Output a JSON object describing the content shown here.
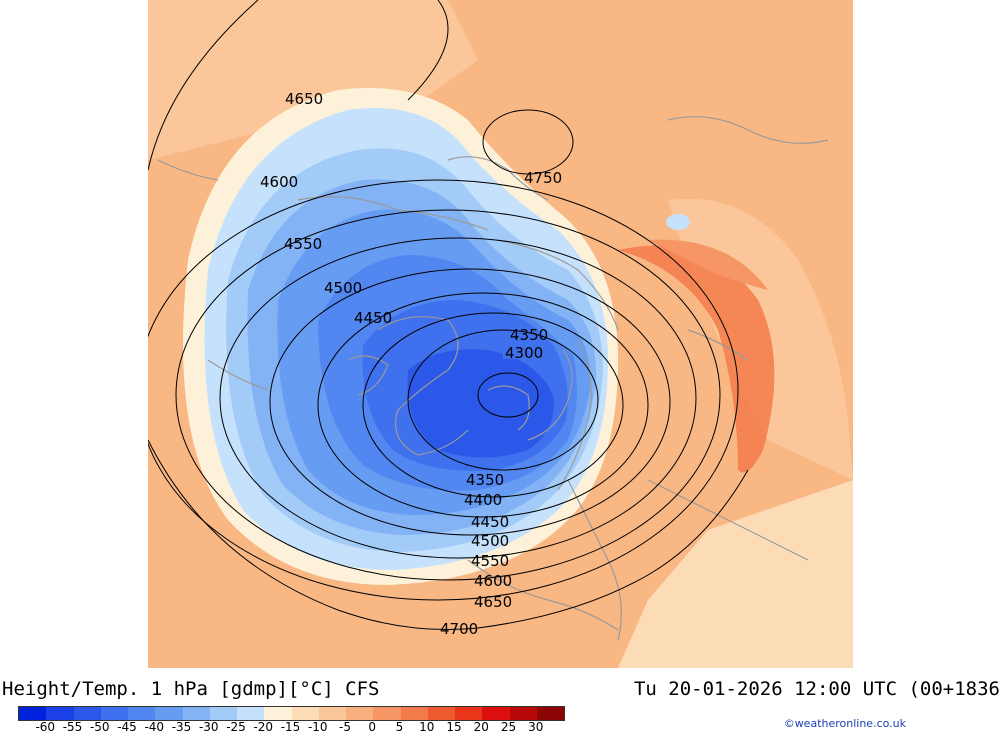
{
  "title": "Height/Temp. 1 hPa [gdmp][°C] CFS",
  "valid_time": "Tu 20-01-2026 12:00 UTC (00+1836",
  "credit": "©weatheronline.co.uk",
  "colorbar": {
    "ticks": [
      "-60",
      "-55",
      "-50",
      "-45",
      "-40",
      "-35",
      "-30",
      "-25",
      "-20",
      "-15",
      "-10",
      "-5",
      "0",
      "5",
      "10",
      "15",
      "20",
      "25",
      "30"
    ],
    "colors": [
      "#0022dd",
      "#1a40e6",
      "#2c58ea",
      "#3f70ee",
      "#5286f1",
      "#679cf3",
      "#83b3f5",
      "#a3cbf8",
      "#c6e1fb",
      "#fdf1da",
      "#fcdcb6",
      "#fbc79a",
      "#f9b07e",
      "#f69664",
      "#f37b4b",
      "#ee5b2f",
      "#e9361a",
      "#dd0f0f",
      "#b80808",
      "#8c0404"
    ]
  },
  "contours": {
    "c4300": "4300",
    "c4350a": "4350",
    "c4350b": "4350",
    "c4400": "4400",
    "c4450a": "4450",
    "c4450b": "4450",
    "c4500a": "4500",
    "c4500b": "4500",
    "c4550a": "4550",
    "c4550b": "4550",
    "c4600a": "4600",
    "c4600b": "4600",
    "c4650a": "4650",
    "c4650b": "4650",
    "c4700": "4700",
    "c4750": "4750"
  }
}
